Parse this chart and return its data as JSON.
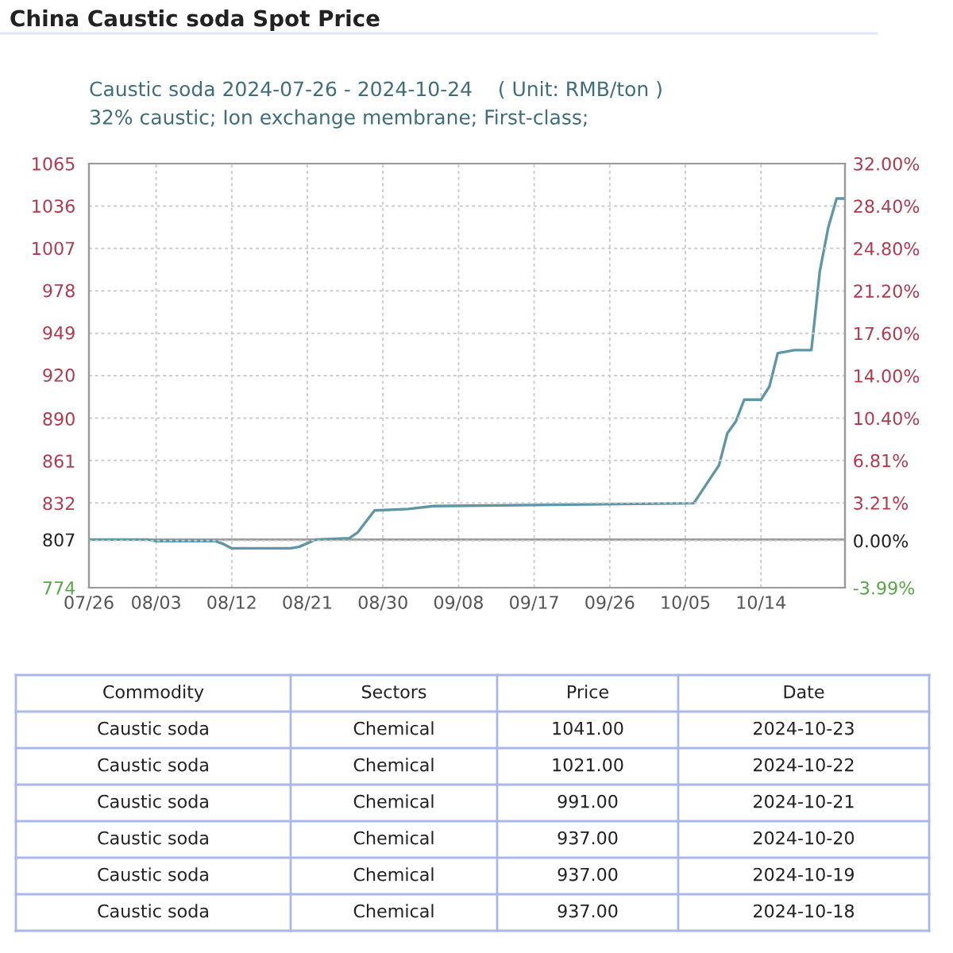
{
  "chart_data": {
    "type": "line",
    "title": "China Caustic soda Spot Price",
    "subtitle": "Caustic soda 2024-07-26 - 2024-10-24    ( Unit: RMB/ton )\n32% caustic; Ion exchange membrane; First-class;",
    "x": [
      "2024-07-26",
      "2024-08-02",
      "2024-08-03",
      "2024-08-10",
      "2024-08-11",
      "2024-08-12",
      "2024-08-19",
      "2024-08-20",
      "2024-08-22",
      "2024-08-26",
      "2024-08-27",
      "2024-08-29",
      "2024-09-02",
      "2024-09-05",
      "2024-10-06",
      "2024-10-09",
      "2024-10-10",
      "2024-10-11",
      "2024-10-12",
      "2024-10-14",
      "2024-10-15",
      "2024-10-16",
      "2024-10-18",
      "2024-10-19",
      "2024-10-20",
      "2024-10-21",
      "2024-10-22",
      "2024-10-23",
      "2024-10-24"
    ],
    "series": [
      {
        "color": "#5f96a5",
        "values": [
          807,
          807,
          806,
          806,
          804,
          801,
          801,
          802,
          807,
          808,
          812,
          827,
          828,
          830,
          832,
          858,
          880,
          888,
          903,
          903,
          912,
          935,
          937,
          937,
          937,
          991,
          1021,
          1041,
          1041
        ]
      }
    ],
    "xlim": [
      "2024-07-26",
      "2024-10-24"
    ],
    "xticks": [
      {
        "value": "2024-07-26",
        "label": "07/26"
      },
      {
        "value": "2024-08-03",
        "label": "08/03"
      },
      {
        "value": "2024-08-12",
        "label": "08/12"
      },
      {
        "value": "2024-08-21",
        "label": "08/21"
      },
      {
        "value": "2024-08-30",
        "label": "08/30"
      },
      {
        "value": "2024-09-08",
        "label": "09/08"
      },
      {
        "value": "2024-09-17",
        "label": "09/17"
      },
      {
        "value": "2024-09-26",
        "label": "09/26"
      },
      {
        "value": "2024-10-05",
        "label": "10/05"
      },
      {
        "value": "2024-10-14",
        "label": "10/14"
      }
    ],
    "ylim": [
      774,
      1065
    ],
    "yticks": [
      774,
      807,
      832,
      861,
      890,
      920,
      949,
      978,
      1007,
      1036,
      1065
    ],
    "y2lim": [
      -3.99,
      32.0
    ],
    "y2ticks": [
      {
        "value": -3.99,
        "label": "-3.99%"
      },
      {
        "value": 0,
        "label": "0.00%"
      },
      {
        "value": 3.21,
        "label": "3.21%"
      },
      {
        "value": 6.81,
        "label": "6.81%"
      },
      {
        "value": 10.4,
        "label": "10.40%"
      },
      {
        "value": 14.0,
        "label": "14.00%"
      },
      {
        "value": 17.6,
        "label": "17.60%"
      },
      {
        "value": 21.2,
        "label": "21.20%"
      },
      {
        "value": 24.8,
        "label": "24.80%"
      },
      {
        "value": 28.4,
        "label": "28.40%"
      },
      {
        "value": 32.0,
        "label": "32.00%"
      }
    ],
    "ref_lines": [
      {
        "axis": "y",
        "value": 807,
        "color": "#999999"
      }
    ],
    "grid": true,
    "annotations": [
      "Commodity",
      "Sectors",
      "Price",
      "Date",
      "Caustic soda",
      "Chemical",
      "1041.00",
      "2024-10-23",
      "Caustic soda",
      "Chemical",
      "1021.00",
      "2024-10-22",
      "Caustic soda",
      "Chemical",
      "991.00",
      "2024-10-21",
      "Caustic soda",
      "Chemical",
      "937.00",
      "2024-10-20",
      "Caustic soda",
      "Chemical",
      "937.00",
      "2024-10-19",
      "Caustic soda",
      "Chemical",
      "937.00",
      "2024-10-18"
    ]
  }
}
